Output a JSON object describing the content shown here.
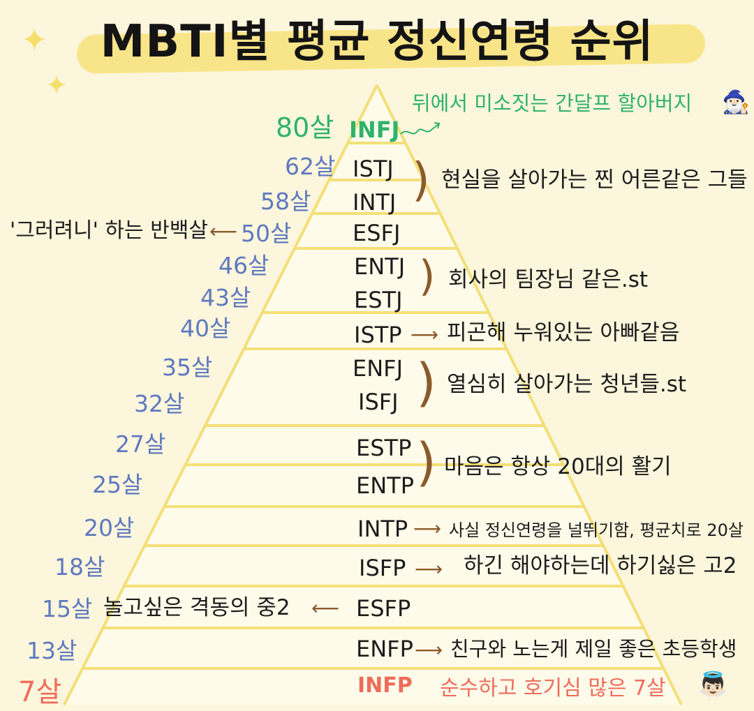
{
  "title": "MBTI별 평균 정신연령 순위",
  "top": {
    "age": "80살",
    "mbti": "INFJ",
    "desc": "뒤에서 미소짓는 간달프 할아버지",
    "emoji": "🧙🏻‍♂️",
    "color": "#2fb36a"
  },
  "rows": {
    "istj": {
      "age": "62살",
      "mbti": "ISTJ"
    },
    "intj": {
      "age": "58살",
      "mbti": "INTJ"
    },
    "esfj": {
      "age": "50살",
      "mbti": "ESFJ",
      "desc": "'그러려니' 하는 반백살"
    },
    "entj": {
      "age": "46살",
      "mbti": "ENTJ"
    },
    "estj": {
      "age": "43살",
      "mbti": "ESTJ"
    },
    "istp": {
      "age": "40살",
      "mbti": "ISTP",
      "desc": "피곤해 누워있는 아빠같음"
    },
    "enfj": {
      "age": "35살",
      "mbti": "ENFJ"
    },
    "isfj": {
      "age": "32살",
      "mbti": "ISFJ"
    },
    "estp": {
      "age": "27살",
      "mbti": "ESTP"
    },
    "entp": {
      "age": "25살",
      "mbti": "ENTP"
    },
    "intp": {
      "age": "20살",
      "mbti": "INTP",
      "desc": "사실 정신연령을 널뛰기함, 평균치로 20살"
    },
    "isfp": {
      "age": "18살",
      "mbti": "ISFP",
      "desc": "하긴 해야하는데 하기싫은 고2"
    },
    "esfp": {
      "age": "15살",
      "mbti": "ESFP",
      "desc": "놀고싶은 격동의 중2"
    },
    "enfp": {
      "age": "13살",
      "mbti": "ENFP",
      "desc": "친구와 노는게 제일 좋은 초등학생"
    },
    "infp": {
      "age": "7살",
      "mbti": "INFP",
      "desc": "순수하고 호기심 많은 7살",
      "emoji": "👼🏻"
    }
  },
  "groups": {
    "g1": "현실을 살아가는 찐 어른같은 그들",
    "g2": "회사의 팀장님 같은.st",
    "g3": "열심히 살아가는 청년들.st",
    "g4": "마음은 항상 20대의 활기"
  },
  "colors": {
    "background": "#fcf6dc",
    "pyramid_fill": "#fefbea",
    "pyramid_line": "#f3df78",
    "title_highlight": "#f8e27a",
    "age_blue": "#5f79bf",
    "highlight_green": "#2fb36a",
    "highlight_red": "#ee6c5b",
    "arrow_brown": "#8b5a2b"
  }
}
